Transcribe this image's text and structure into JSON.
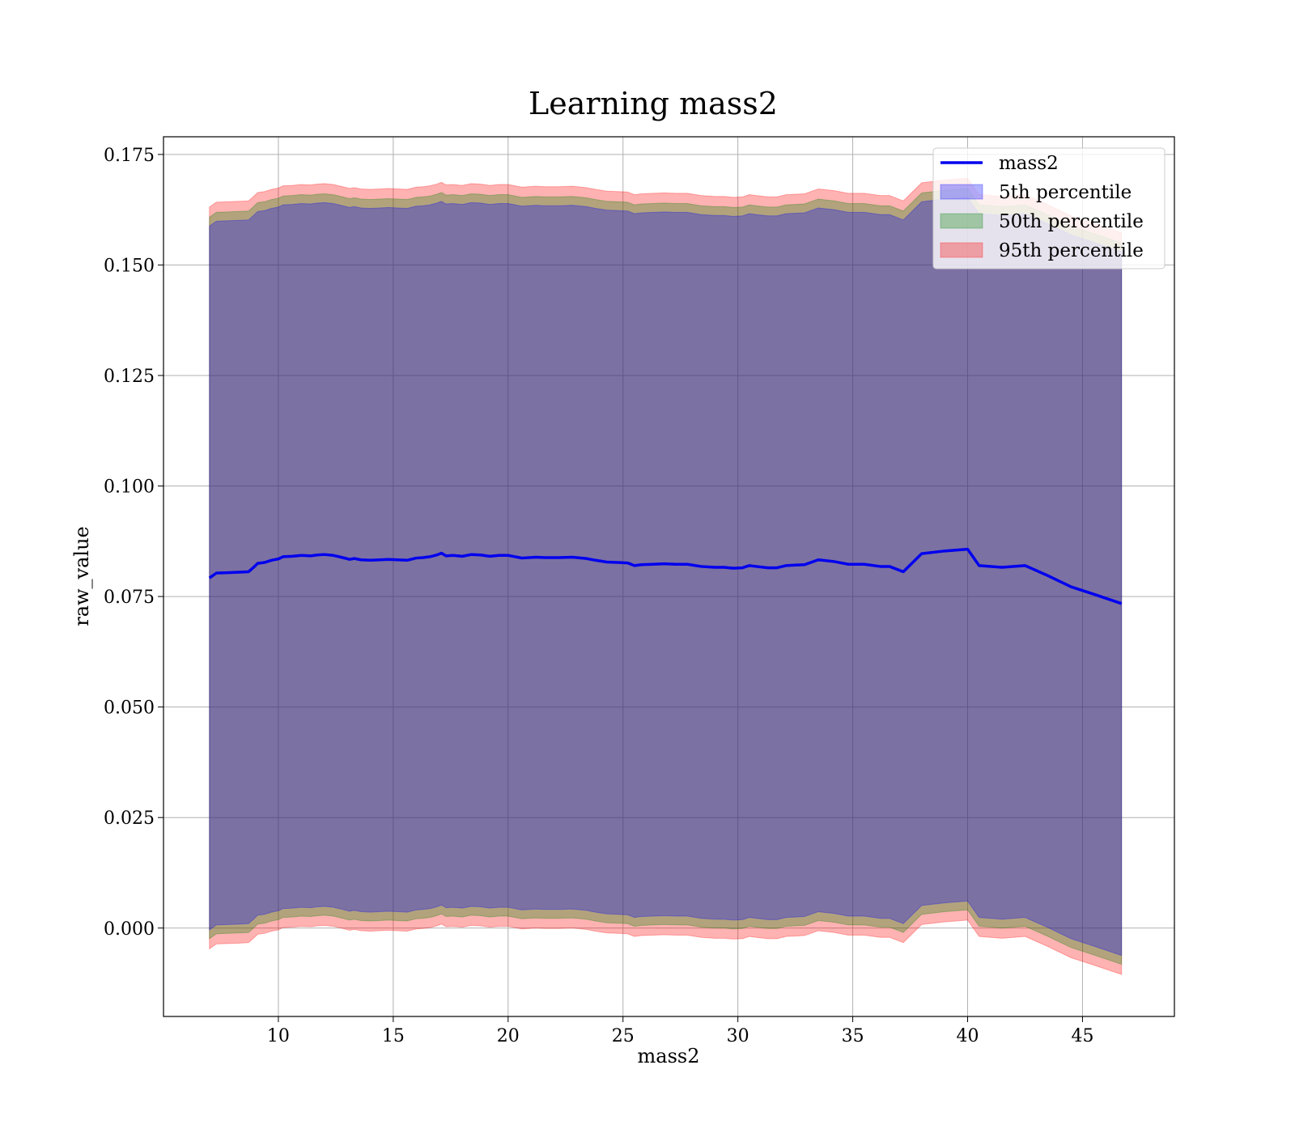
{
  "chart_data": {
    "type": "line",
    "title": "Learning mass2",
    "xlabel": "mass2",
    "ylabel": "raw_value",
    "xlim": [
      5,
      49
    ],
    "ylim": [
      -0.02,
      0.179
    ],
    "xticks": [
      10,
      15,
      20,
      25,
      30,
      35,
      40,
      45
    ],
    "xtick_labels": [
      "10",
      "15",
      "20",
      "25",
      "30",
      "35",
      "40",
      "45"
    ],
    "yticks": [
      0.0,
      0.025,
      0.05,
      0.075,
      0.1,
      0.125,
      0.15,
      0.175
    ],
    "ytick_labels": [
      "0.000",
      "0.025",
      "0.050",
      "0.075",
      "0.100",
      "0.125",
      "0.150",
      "0.175"
    ],
    "grid": true,
    "legend_position": "top-right",
    "x": [
      7.0,
      7.3,
      7.8,
      8.3,
      8.7,
      8.9,
      9.1,
      9.4,
      9.7,
      10.0,
      10.2,
      10.6,
      11.0,
      11.4,
      11.7,
      12.0,
      12.4,
      12.8,
      13.1,
      13.3,
      13.6,
      14.0,
      14.4,
      14.8,
      15.2,
      15.6,
      16.0,
      16.3,
      16.6,
      16.9,
      17.1,
      17.3,
      17.6,
      18.0,
      18.4,
      18.8,
      19.2,
      19.6,
      20.0,
      20.6,
      21.2,
      21.6,
      22.2,
      22.8,
      23.4,
      23.8,
      24.3,
      24.8,
      25.2,
      25.5,
      25.8,
      26.3,
      26.8,
      27.3,
      27.8,
      28.4,
      29.0,
      29.4,
      29.8,
      30.2,
      30.5,
      30.8,
      31.3,
      31.7,
      32.1,
      32.5,
      32.9,
      33.5,
      34.2,
      34.8,
      35.5,
      36.2,
      36.6,
      37.2,
      38.0,
      39.0,
      40.0,
      40.5,
      41.5,
      42.5,
      43.5,
      44.5,
      45.5,
      46.7
    ],
    "series": [
      {
        "name": "mass2",
        "color": "#0000ee",
        "values": [
          0.0792,
          0.0803,
          0.0804,
          0.0805,
          0.0806,
          0.0815,
          0.0825,
          0.0827,
          0.0832,
          0.0835,
          0.084,
          0.0841,
          0.0843,
          0.0842,
          0.0844,
          0.0845,
          0.0843,
          0.0838,
          0.0834,
          0.0836,
          0.0833,
          0.0832,
          0.0833,
          0.0834,
          0.0833,
          0.0832,
          0.0837,
          0.0838,
          0.084,
          0.0844,
          0.0848,
          0.0842,
          0.0843,
          0.0841,
          0.0845,
          0.0844,
          0.0841,
          0.0843,
          0.0843,
          0.0837,
          0.0839,
          0.0838,
          0.0838,
          0.0839,
          0.0836,
          0.0832,
          0.0828,
          0.0827,
          0.0826,
          0.082,
          0.0822,
          0.0823,
          0.0824,
          0.0823,
          0.0823,
          0.0818,
          0.0816,
          0.0816,
          0.0814,
          0.0815,
          0.082,
          0.0818,
          0.0815,
          0.0815,
          0.082,
          0.0821,
          0.0822,
          0.0833,
          0.0829,
          0.0823,
          0.0823,
          0.0818,
          0.0818,
          0.0806,
          0.0847,
          0.0853,
          0.0857,
          0.082,
          0.0816,
          0.082,
          0.0797,
          0.0772,
          0.0755,
          0.0734
        ]
      },
      {
        "name": "5th percentile",
        "color": "#0000ff",
        "width": 0.0796
      },
      {
        "name": "50th percentile",
        "color": "#008000",
        "width": 0.0816
      },
      {
        "name": "95th percentile",
        "color": "#ff0000",
        "width": 0.0839
      }
    ]
  }
}
